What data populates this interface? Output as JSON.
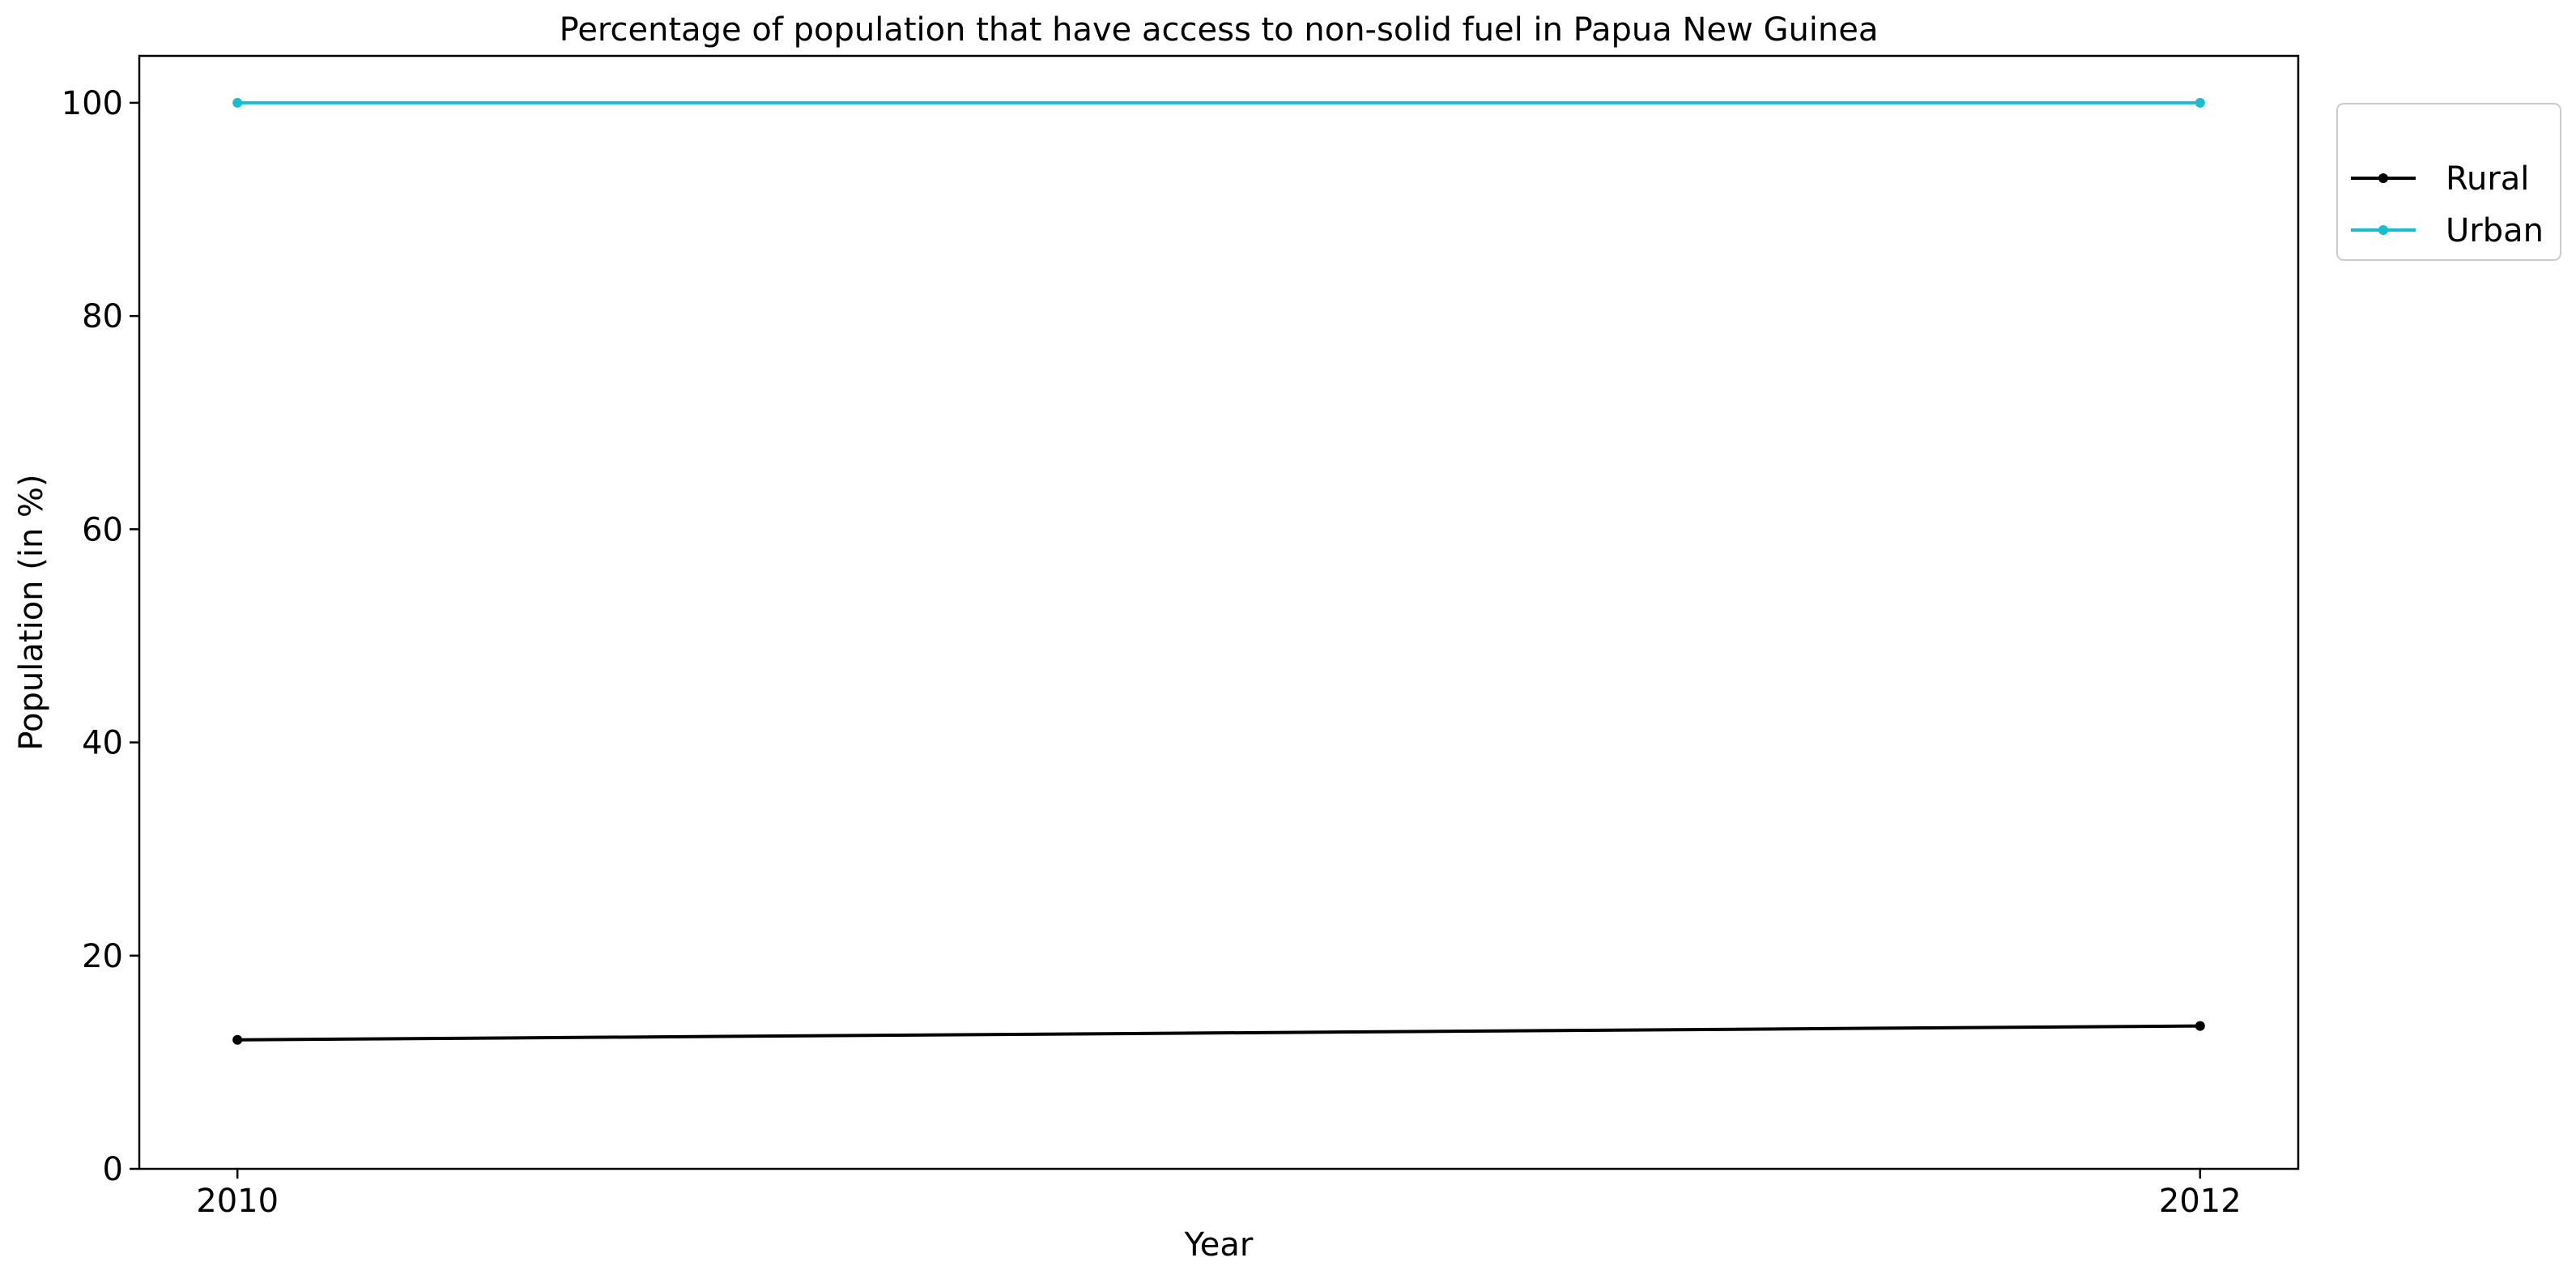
{
  "chart_data": {
    "type": "line",
    "title": "Percentage of population that have access to non-solid fuel in Papua New Guinea",
    "xlabel": "Year",
    "ylabel": "Population (in %)",
    "x": [
      2010,
      2012
    ],
    "x_tick_labels": [
      "2010",
      "2012"
    ],
    "y_ticks": [
      0,
      20,
      40,
      60,
      80,
      100
    ],
    "y_tick_labels": [
      "0",
      "20",
      "40",
      "60",
      "80",
      "100"
    ],
    "ylim": [
      0,
      104.4
    ],
    "xlim": [
      2009.9,
      2012.1
    ],
    "grid": false,
    "legend_placement": "upper-right-outside",
    "series": [
      {
        "name": "Rural",
        "values": [
          12.1,
          13.4
        ],
        "color": "#000000",
        "marker": "circle"
      },
      {
        "name": "Urban",
        "values": [
          100,
          100
        ],
        "color": "#17becf",
        "marker": "circle"
      }
    ]
  }
}
